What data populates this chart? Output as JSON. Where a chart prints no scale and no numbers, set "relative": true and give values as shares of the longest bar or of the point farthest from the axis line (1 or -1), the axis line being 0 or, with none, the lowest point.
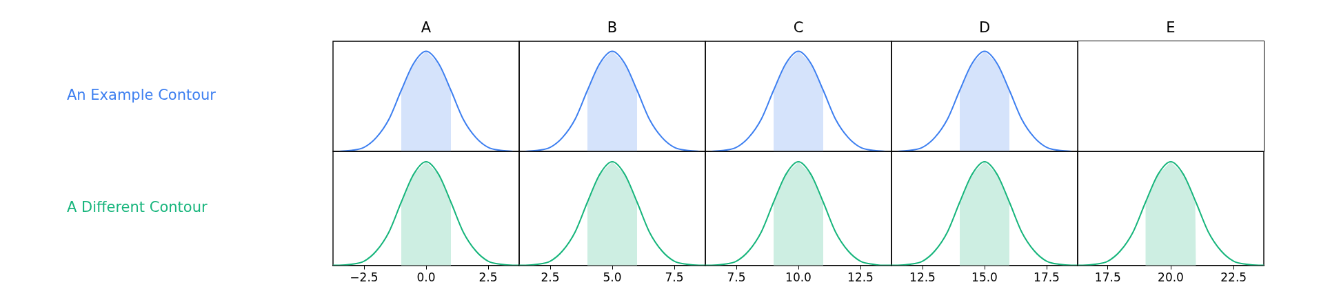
{
  "chart_data": [
    {
      "type": "line",
      "title": "A",
      "relative": true,
      "tick_labels": false,
      "xlim": [
        -3.75,
        3.75
      ],
      "x": [
        -3.5,
        -3,
        -2.5,
        -2,
        -1.5,
        -1,
        -0.5,
        0,
        0.5,
        1,
        1.5,
        2,
        2.5,
        3,
        3.5
      ],
      "series": [
        {
          "name": "An Example Contour",
          "color": "#3d7ff0",
          "values": [
            0,
            0.01,
            0.04,
            0.14,
            0.32,
            0.61,
            0.88,
            1,
            0.88,
            0.61,
            0.32,
            0.14,
            0.04,
            0.01,
            0
          ]
        }
      ],
      "bands": [
        {
          "axis": "x",
          "from": -1,
          "to": 1,
          "color": "#d5e3fb"
        }
      ]
    },
    {
      "type": "line",
      "title": "B",
      "relative": true,
      "tick_labels": false,
      "xlim": [
        1.25,
        8.75
      ],
      "x": [
        1.5,
        2,
        2.5,
        3,
        3.5,
        4,
        4.5,
        5,
        5.5,
        6,
        6.5,
        7,
        7.5,
        8,
        8.5
      ],
      "series": [
        {
          "color": "#3d7ff0",
          "values": [
            0,
            0.01,
            0.04,
            0.14,
            0.32,
            0.61,
            0.88,
            1,
            0.88,
            0.61,
            0.32,
            0.14,
            0.04,
            0.01,
            0
          ]
        }
      ],
      "bands": [
        {
          "axis": "x",
          "from": 4,
          "to": 6,
          "color": "#d5e3fb"
        }
      ]
    },
    {
      "type": "line",
      "title": "C",
      "relative": true,
      "tick_labels": false,
      "xlim": [
        6.25,
        13.75
      ],
      "x": [
        6.5,
        7,
        7.5,
        8,
        8.5,
        9,
        9.5,
        10,
        10.5,
        11,
        11.5,
        12,
        12.5,
        13,
        13.5
      ],
      "series": [
        {
          "color": "#3d7ff0",
          "values": [
            0,
            0.01,
            0.04,
            0.14,
            0.32,
            0.61,
            0.88,
            1,
            0.88,
            0.61,
            0.32,
            0.14,
            0.04,
            0.01,
            0
          ]
        }
      ],
      "bands": [
        {
          "axis": "x",
          "from": 9,
          "to": 11,
          "color": "#d5e3fb"
        }
      ]
    },
    {
      "type": "line",
      "title": "D",
      "relative": true,
      "tick_labels": false,
      "xlim": [
        11.25,
        18.75
      ],
      "x": [
        11.5,
        12,
        12.5,
        13,
        13.5,
        14,
        14.5,
        15,
        15.5,
        16,
        16.5,
        17,
        17.5,
        18,
        18.5
      ],
      "series": [
        {
          "color": "#3d7ff0",
          "values": [
            0,
            0.01,
            0.04,
            0.14,
            0.32,
            0.61,
            0.88,
            1,
            0.88,
            0.61,
            0.32,
            0.14,
            0.04,
            0.01,
            0
          ]
        }
      ],
      "bands": [
        {
          "axis": "x",
          "from": 14,
          "to": 16,
          "color": "#d5e3fb"
        }
      ]
    },
    {
      "type": "other",
      "title": "E"
    },
    {
      "type": "line",
      "relative": true,
      "tick_labels": "x",
      "xlim": [
        -3.75,
        3.75
      ],
      "xticks": [
        {
          "value": -2.5,
          "label": "−2.5"
        },
        {
          "value": 0,
          "label": "0.0"
        },
        {
          "value": 2.5,
          "label": "2.5"
        }
      ],
      "x": [
        -3.75,
        -3.5,
        -3,
        -2.5,
        -2,
        -1.5,
        -1,
        -0.5,
        0,
        0.5,
        1,
        1.5,
        2,
        2.5,
        3,
        3.5,
        3.75
      ],
      "series": [
        {
          "name": "A Different Contour",
          "color": "#17b57c",
          "values": [
            0,
            0,
            0.01,
            0.04,
            0.14,
            0.32,
            0.61,
            0.88,
            1,
            0.88,
            0.61,
            0.32,
            0.14,
            0.04,
            0.01,
            0,
            0
          ]
        }
      ],
      "bands": [
        {
          "axis": "x",
          "from": -1,
          "to": 1,
          "color": "#cdeee2"
        }
      ]
    },
    {
      "type": "line",
      "relative": true,
      "tick_labels": "x",
      "xlim": [
        1.25,
        8.75
      ],
      "xticks": [
        {
          "value": 2.5,
          "label": "2.5"
        },
        {
          "value": 5,
          "label": "5.0"
        },
        {
          "value": 7.5,
          "label": "7.5"
        }
      ],
      "x": [
        1.25,
        1.5,
        2,
        2.5,
        3,
        3.5,
        4,
        4.5,
        5,
        5.5,
        6,
        6.5,
        7,
        7.5,
        8,
        8.5,
        8.75
      ],
      "series": [
        {
          "color": "#17b57c",
          "values": [
            0,
            0,
            0.01,
            0.04,
            0.14,
            0.32,
            0.61,
            0.88,
            1,
            0.88,
            0.61,
            0.32,
            0.14,
            0.04,
            0.01,
            0,
            0
          ]
        }
      ],
      "bands": [
        {
          "axis": "x",
          "from": 4,
          "to": 6,
          "color": "#cdeee2"
        }
      ]
    },
    {
      "type": "line",
      "relative": true,
      "tick_labels": "x",
      "xlim": [
        6.25,
        13.75
      ],
      "xticks": [
        {
          "value": 7.5,
          "label": "7.5"
        },
        {
          "value": 10,
          "label": "10.0"
        },
        {
          "value": 12.5,
          "label": "12.5"
        }
      ],
      "x": [
        6.25,
        6.5,
        7,
        7.5,
        8,
        8.5,
        9,
        9.5,
        10,
        10.5,
        11,
        11.5,
        12,
        12.5,
        13,
        13.5,
        13.75
      ],
      "series": [
        {
          "color": "#17b57c",
          "values": [
            0,
            0,
            0.01,
            0.04,
            0.14,
            0.32,
            0.61,
            0.88,
            1,
            0.88,
            0.61,
            0.32,
            0.14,
            0.04,
            0.01,
            0,
            0
          ]
        }
      ],
      "bands": [
        {
          "axis": "x",
          "from": 9,
          "to": 11,
          "color": "#cdeee2"
        }
      ]
    },
    {
      "type": "line",
      "relative": true,
      "tick_labels": "x",
      "xlim": [
        11.25,
        18.75
      ],
      "xticks": [
        {
          "value": 12.5,
          "label": "12.5"
        },
        {
          "value": 15,
          "label": "15.0"
        },
        {
          "value": 17.5,
          "label": "17.5"
        }
      ],
      "x": [
        11.25,
        11.5,
        12,
        12.5,
        13,
        13.5,
        14,
        14.5,
        15,
        15.5,
        16,
        16.5,
        17,
        17.5,
        18,
        18.5,
        18.75
      ],
      "series": [
        {
          "color": "#17b57c",
          "values": [
            0,
            0,
            0.01,
            0.04,
            0.14,
            0.32,
            0.61,
            0.88,
            1,
            0.88,
            0.61,
            0.32,
            0.14,
            0.04,
            0.01,
            0,
            0
          ]
        }
      ],
      "bands": [
        {
          "axis": "x",
          "from": 14,
          "to": 16,
          "color": "#cdeee2"
        }
      ]
    },
    {
      "type": "line",
      "relative": true,
      "tick_labels": "x",
      "xlim": [
        16.3,
        23.7
      ],
      "xticks": [
        {
          "value": 17.5,
          "label": "17.5"
        },
        {
          "value": 20,
          "label": "20.0"
        },
        {
          "value": 22.5,
          "label": "22.5"
        }
      ],
      "x": [
        16.3,
        16.5,
        17,
        17.5,
        18,
        18.5,
        19,
        19.5,
        20,
        20.5,
        21,
        21.5,
        22,
        22.5,
        23,
        23.5,
        23.7
      ],
      "series": [
        {
          "color": "#17b57c",
          "values": [
            0,
            0,
            0.01,
            0.04,
            0.14,
            0.32,
            0.61,
            0.88,
            1,
            0.88,
            0.61,
            0.32,
            0.14,
            0.04,
            0.01,
            0,
            0
          ]
        }
      ],
      "bands": [
        {
          "axis": "x",
          "from": 19,
          "to": 21,
          "color": "#cdeee2"
        }
      ]
    }
  ]
}
